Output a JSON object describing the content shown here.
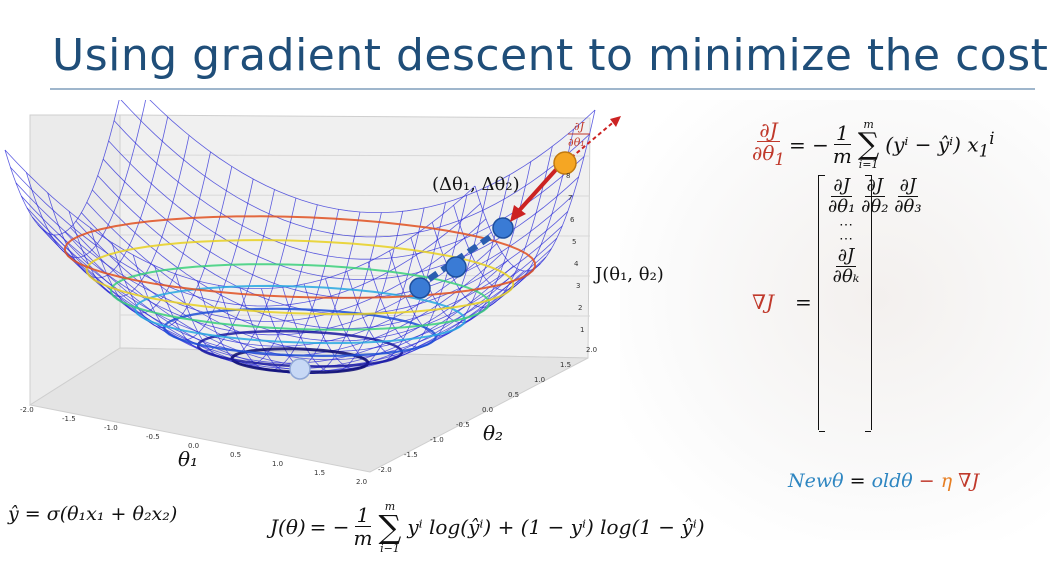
{
  "slide": {
    "title": "Using gradient descent to minimize the cost"
  },
  "plot": {
    "step_label": "(Δθ₁, Δθ₂)",
    "gradient_label_num": "∂J",
    "gradient_label_den": "∂θ₁",
    "z_axis_label": "J(θ₁, θ₂)",
    "x_axis_label": "θ₁",
    "y_axis_label": "θ₂",
    "x_ticks": [
      "-2.0",
      "-1.5",
      "-1.0",
      "-0.5",
      "0.0",
      "0.5",
      "1.0",
      "1.5",
      "2.0"
    ],
    "y_ticks": [
      "-2.0",
      "-1.5",
      "-1.0",
      "-0.5",
      "0.0",
      "0.5",
      "1.0",
      "1.5",
      "2.0"
    ],
    "z_ticks": [
      "1",
      "2",
      "3",
      "4",
      "5",
      "6",
      "7",
      "8"
    ],
    "colors": {
      "mesh": "#2a2ad8",
      "start_point": "#f5a623",
      "path_point": "#3a7bd5",
      "min_point": "#c7d8f5",
      "arrow": "#cc2222"
    }
  },
  "equations": {
    "partial_lhs_num": "∂J",
    "partial_lhs_den": "∂θ",
    "partial_lhs_sub": "1",
    "partial_eq": "= −",
    "partial_coef_num": "1",
    "partial_coef_den": "m",
    "sum_top": "m",
    "sum_bottom": "i=1",
    "partial_rhs": "(yⁱ − ŷⁱ) x",
    "partial_rhs_sub": "1",
    "partial_rhs_sup": "i",
    "grad_lhs": "∇J",
    "grad_eq": "=",
    "vector": [
      {
        "num": "∂J",
        "den": "∂θ₁"
      },
      {
        "num": "∂J",
        "den": "∂θ₂"
      },
      {
        "num": "∂J",
        "den": "∂θ₃"
      }
    ],
    "vector_dots": "⋯",
    "vector_dots2": "⋯",
    "vector_last": {
      "num": "∂J",
      "den": "∂θₖ"
    },
    "update_lhs": "Newθ",
    "update_eq": "=",
    "update_old": "oldθ",
    "update_minus": "−",
    "update_eta": "η",
    "update_grad": "∇J",
    "yhat": "ŷ = σ(θ₁x₁ + θ₂x₂)",
    "cost_lhs": "J(θ)",
    "cost_eq": "= −",
    "cost_coef_num": "1",
    "cost_coef_den": "m",
    "cost_sum_top": "m",
    "cost_sum_bottom": "i−1",
    "cost_rhs": "yⁱ log(ŷⁱ) + (1 − yⁱ) log(1 − ŷⁱ)"
  }
}
